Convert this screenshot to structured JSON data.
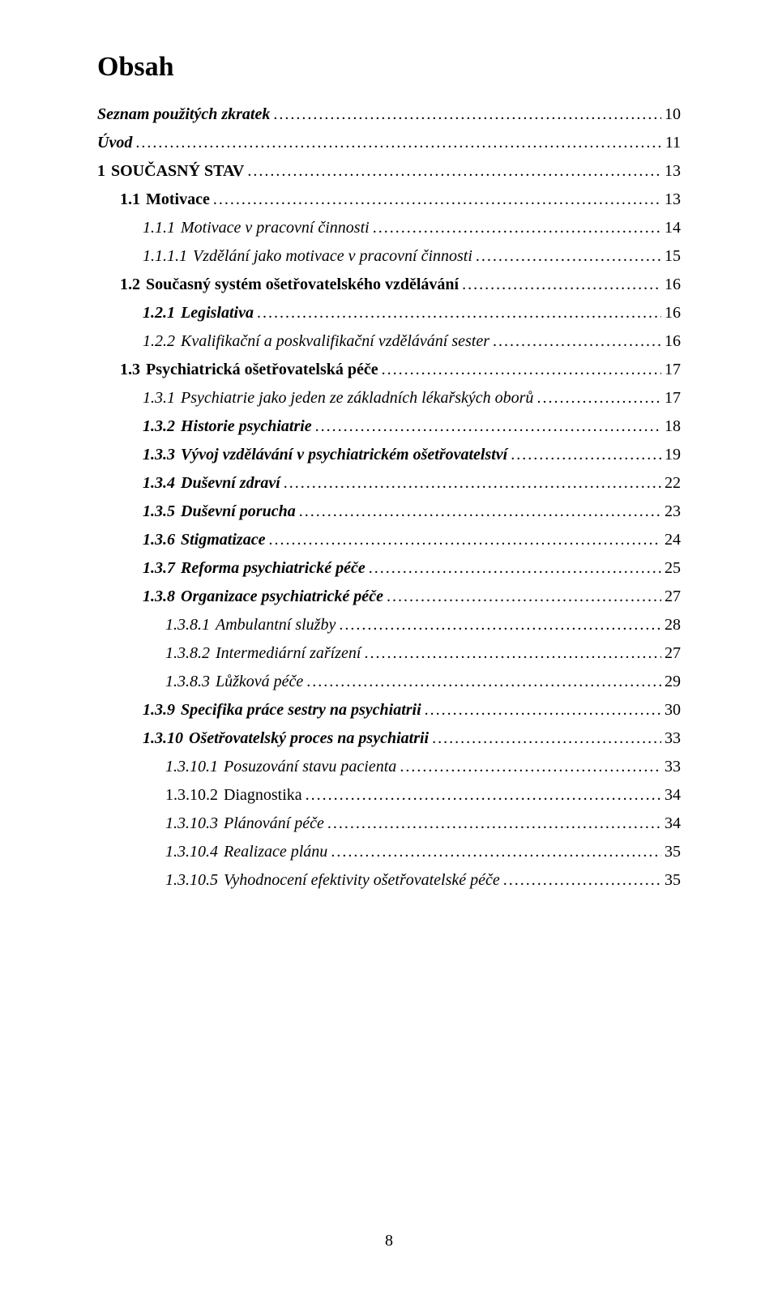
{
  "colors": {
    "background": "#ffffff",
    "text": "#000000"
  },
  "typography": {
    "family": "Times New Roman",
    "title_size_pt": 26,
    "body_size_pt": 15,
    "line_height": 1.75
  },
  "title": "Obsah",
  "footer_page_number": "8",
  "entries": [
    {
      "indent": 0,
      "style": "bi",
      "number": "",
      "text": "Seznam použitých zkratek",
      "page": "10"
    },
    {
      "indent": 0,
      "style": "bi",
      "number": "",
      "text": "Úvod",
      "page": "11"
    },
    {
      "indent": 0,
      "style": "b",
      "number": "1",
      "text": "SOUČASNÝ STAV",
      "page": "13"
    },
    {
      "indent": 1,
      "style": "b",
      "number": "1.1",
      "text": "Motivace",
      "page": "13"
    },
    {
      "indent": 2,
      "style": "i",
      "number": "1.1.1",
      "text": "Motivace v pracovní činnosti",
      "page": "14"
    },
    {
      "indent": 2,
      "style": "i",
      "number": "1.1.1.1",
      "text": "Vzdělání jako motivace v pracovní činnosti",
      "page": "15"
    },
    {
      "indent": 1,
      "style": "b",
      "number": "1.2",
      "text": "Současný systém ošetřovatelského vzdělávání",
      "page": "16"
    },
    {
      "indent": 2,
      "style": "bi",
      "number": "1.2.1",
      "text": "Legislativa",
      "page": "16"
    },
    {
      "indent": 2,
      "style": "i",
      "number": "1.2.2",
      "text": "Kvalifikační a poskvalifikační vzdělávání sester",
      "page": "16"
    },
    {
      "indent": 1,
      "style": "b",
      "number": "1.3",
      "text": "Psychiatrická ošetřovatelská péče",
      "page": "17"
    },
    {
      "indent": 2,
      "style": "i",
      "number": "1.3.1",
      "text": "Psychiatrie jako jeden ze základních lékařských oborů",
      "page": "17"
    },
    {
      "indent": 2,
      "style": "bi",
      "number": "1.3.2",
      "text": "Historie psychiatrie",
      "page": "18"
    },
    {
      "indent": 2,
      "style": "bi",
      "number": "1.3.3",
      "text": "Vývoj vzdělávání v psychiatrickém ošetřovatelství",
      "page": "19"
    },
    {
      "indent": 2,
      "style": "bi",
      "number": "1.3.4",
      "text": "Duševní zdraví",
      "page": "22"
    },
    {
      "indent": 2,
      "style": "bi",
      "number": "1.3.5",
      "text": "Duševní porucha",
      "page": "23"
    },
    {
      "indent": 2,
      "style": "bi",
      "number": "1.3.6",
      "text": "Stigmatizace",
      "page": "24"
    },
    {
      "indent": 2,
      "style": "bi",
      "number": "1.3.7",
      "text": "Reforma psychiatrické péče",
      "page": "25"
    },
    {
      "indent": 2,
      "style": "bi",
      "number": "1.3.8",
      "text": "Organizace psychiatrické péče",
      "page": "27"
    },
    {
      "indent": 3,
      "style": "i",
      "number": "1.3.8.1",
      "text": "Ambulantní služby",
      "page": "28"
    },
    {
      "indent": 3,
      "style": "i",
      "number": "1.3.8.2",
      "text": "Intermediární zařízení",
      "page": "27"
    },
    {
      "indent": 3,
      "style": "i",
      "number": "1.3.8.3",
      "text": "Lůžková péče",
      "page": "29"
    },
    {
      "indent": 2,
      "style": "bi",
      "number": "1.3.9",
      "text": "Specifika práce sestry na psychiatrii",
      "page": "30"
    },
    {
      "indent": 2,
      "style": "bi",
      "number": "1.3.10",
      "text": "Ošetřovatelský proces na psychiatrii",
      "page": "33"
    },
    {
      "indent": 3,
      "style": "i",
      "number": "1.3.10.1",
      "text": "Posuzování stavu pacienta",
      "page": "33"
    },
    {
      "indent": 3,
      "style": "n",
      "number": "1.3.10.2",
      "text": "Diagnostika",
      "page": "34"
    },
    {
      "indent": 3,
      "style": "i",
      "number": "1.3.10.3",
      "text": "Plánování péče",
      "page": "34"
    },
    {
      "indent": 3,
      "style": "i",
      "number": "1.3.10.4",
      "text": "Realizace plánu",
      "page": "35"
    },
    {
      "indent": 3,
      "style": "i",
      "number": "1.3.10.5",
      "text": "Vyhodnocení efektivity ošetřovatelské péče",
      "page": "35"
    }
  ]
}
